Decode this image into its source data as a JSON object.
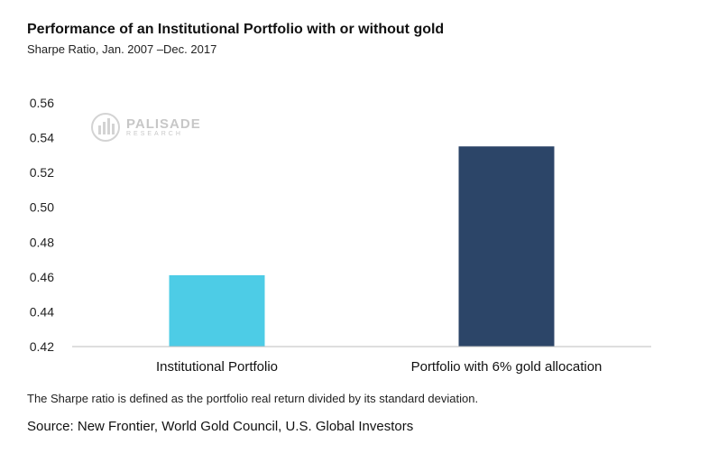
{
  "header": {
    "title": "Performance of an Institutional Portfolio with or without gold",
    "subtitle": "Sharpe Ratio, Jan. 2007 –Dec. 2017"
  },
  "logo": {
    "line1": "PALISADE",
    "line2": "RESEARCH"
  },
  "footer": {
    "note": "The Sharpe ratio is defined as the portfolio real return divided by its standard deviation.",
    "source": "Source: New Frontier, World Gold Council, U.S. Global Investors"
  },
  "chart_data": {
    "type": "bar",
    "categories": [
      "Institutional Portfolio",
      "Portfolio with 6% gold allocation"
    ],
    "values": [
      0.461,
      0.535
    ],
    "colors": [
      "#4DCCE6",
      "#2C4568"
    ],
    "ylim": [
      0.42,
      0.56
    ],
    "yticks": [
      "0.42",
      "0.44",
      "0.46",
      "0.48",
      "0.50",
      "0.52",
      "0.54",
      "0.56"
    ],
    "grid": false,
    "xlabel": "",
    "ylabel": ""
  }
}
